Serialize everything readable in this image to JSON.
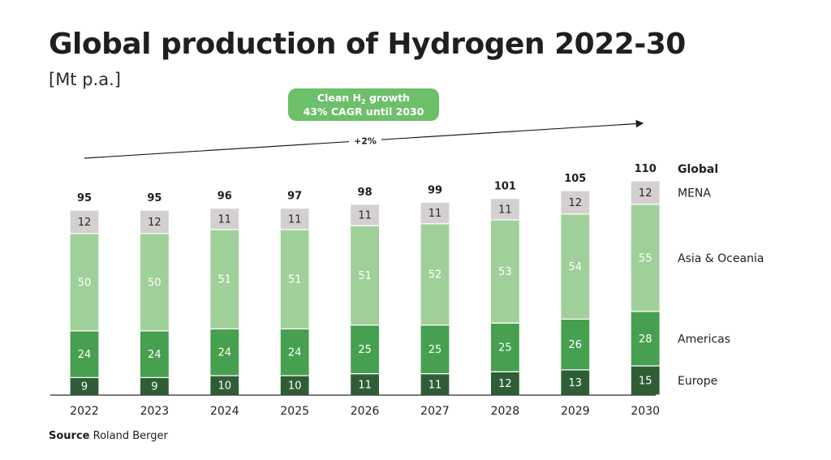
{
  "title": "Global production of Hydrogen 2022-30",
  "unit": "[Mt p.a.]",
  "source_label": "Source",
  "source_value": "Roland Berger",
  "badge": {
    "line1_pre": "Clean H",
    "line1_sub": "2",
    "line1_post": " growth",
    "line2": "43% CAGR until 2030",
    "color": "#6dbf6a"
  },
  "trend_label": "+2%",
  "chart_data": {
    "type": "bar",
    "stacked": true,
    "categories": [
      "2022",
      "2023",
      "2024",
      "2025",
      "2026",
      "2027",
      "2028",
      "2029",
      "2030"
    ],
    "series": [
      {
        "name": "Europe",
        "values": [
          9,
          9,
          10,
          10,
          11,
          11,
          12,
          13,
          15
        ],
        "color": "#2f5e36",
        "label_color": "#ffffff"
      },
      {
        "name": "Americas",
        "values": [
          24,
          24,
          24,
          24,
          25,
          25,
          25,
          26,
          28
        ],
        "color": "#46a04f",
        "label_color": "#ffffff"
      },
      {
        "name": "Asia & Oceania",
        "values": [
          50,
          50,
          51,
          51,
          51,
          52,
          53,
          54,
          55
        ],
        "color": "#9fd09a",
        "label_color": "#ffffff"
      },
      {
        "name": "MENA",
        "values": [
          12,
          12,
          11,
          11,
          11,
          11,
          11,
          12,
          12
        ],
        "color": "#d3d0cf",
        "label_color": "#2a2a2a"
      }
    ],
    "totals": [
      95,
      95,
      96,
      97,
      98,
      99,
      101,
      105,
      110
    ],
    "totals_legend": "Global",
    "ylim": [
      0,
      110
    ]
  }
}
